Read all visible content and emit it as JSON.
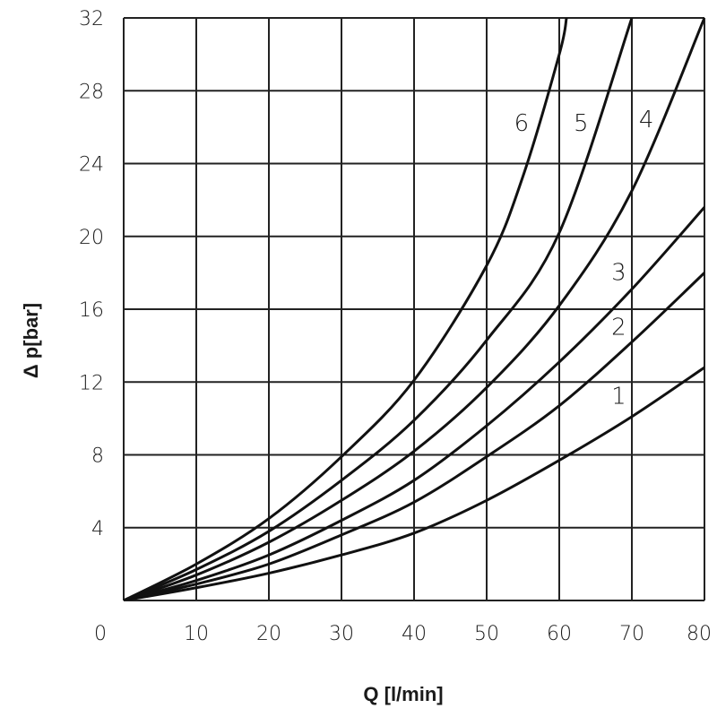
{
  "chart_data": {
    "type": "line",
    "xlabel": "Q [l/min]",
    "ylabel": "Δ p[bar]",
    "xlim": [
      0,
      80
    ],
    "ylim": [
      0,
      32
    ],
    "grid": true,
    "x_ticks": [
      "0",
      "10",
      "20",
      "30",
      "40",
      "50",
      "60",
      "70",
      "80"
    ],
    "y_ticks": [
      "4",
      "8",
      "12",
      "16",
      "20",
      "24",
      "28",
      "32"
    ],
    "series": [
      {
        "name": "1",
        "x": [
          0,
          10,
          20,
          30,
          40,
          50,
          60,
          70,
          80
        ],
        "y": [
          0,
          0.7,
          1.5,
          2.5,
          3.7,
          5.5,
          7.7,
          10.1,
          12.8
        ]
      },
      {
        "name": "2",
        "x": [
          0,
          10,
          20,
          30,
          40,
          50,
          60,
          70,
          80
        ],
        "y": [
          0,
          0.9,
          2.0,
          3.6,
          5.4,
          7.9,
          10.7,
          14.2,
          18.0
        ]
      },
      {
        "name": "3",
        "x": [
          0,
          10,
          20,
          30,
          40,
          50,
          60,
          70,
          80
        ],
        "y": [
          0,
          1.1,
          2.5,
          4.4,
          6.6,
          9.6,
          13.1,
          17.1,
          21.6
        ]
      },
      {
        "name": "4",
        "x": [
          0,
          10,
          20,
          30,
          40,
          50,
          60,
          70,
          80
        ],
        "y": [
          0,
          1.4,
          3.2,
          5.5,
          8.2,
          11.7,
          16.2,
          22.5,
          32.0
        ]
      },
      {
        "name": "5",
        "x": [
          0,
          10,
          20,
          30,
          40,
          50,
          60,
          70
        ],
        "y": [
          0,
          1.7,
          3.8,
          6.6,
          9.9,
          14.3,
          20.2,
          32.0
        ]
      },
      {
        "name": "6",
        "x": [
          0,
          10,
          20,
          30,
          40,
          50,
          55,
          60,
          61
        ],
        "y": [
          0,
          2.0,
          4.5,
          7.9,
          12.1,
          18.4,
          23.3,
          30.0,
          32.0
        ]
      }
    ],
    "curve_label_positions": [
      {
        "name": "1",
        "x": 68.2,
        "y": 10.8
      },
      {
        "name": "2",
        "x": 68.2,
        "y": 14.6
      },
      {
        "name": "3",
        "x": 68.2,
        "y": 17.6
      },
      {
        "name": "4",
        "x": 72.0,
        "y": 26.0
      },
      {
        "name": "5",
        "x": 63.0,
        "y": 25.8
      },
      {
        "name": "6",
        "x": 54.8,
        "y": 25.8
      }
    ]
  }
}
